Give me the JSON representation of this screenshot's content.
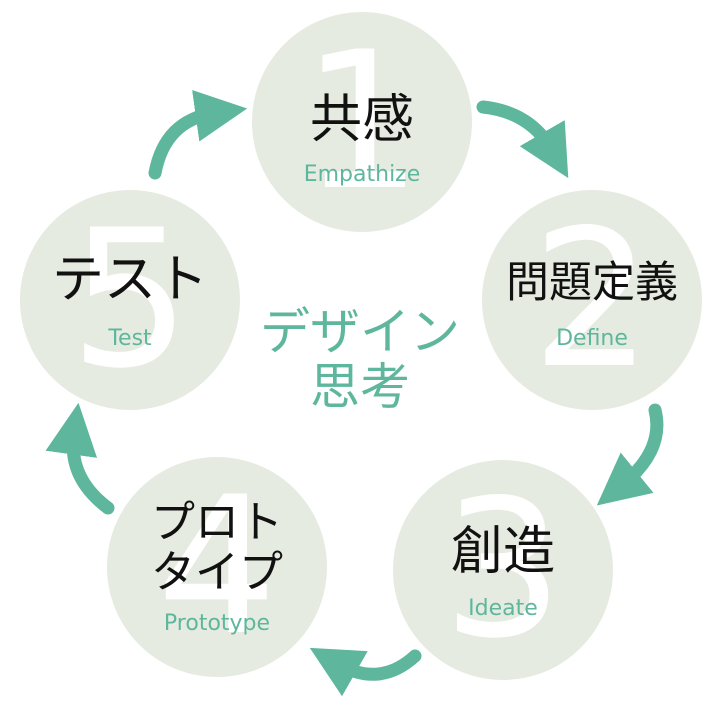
{
  "center": {
    "line1": "デザイン",
    "line2": "思考"
  },
  "stages": [
    {
      "number": "1",
      "ja": "共感",
      "en": "Empathize"
    },
    {
      "number": "2",
      "ja": "問題定義",
      "en": "Define"
    },
    {
      "number": "3",
      "ja": "創造",
      "en": "Ideate"
    },
    {
      "number": "4",
      "ja_line1": "プロト",
      "ja_line2": "タイプ",
      "en": "Prototype"
    },
    {
      "number": "5",
      "ja": "テスト",
      "en": "Test"
    }
  ],
  "colors": {
    "accent": "#5eb79d",
    "circle": "#e6ebe1",
    "text": "#111111",
    "number": "#ffffff"
  }
}
